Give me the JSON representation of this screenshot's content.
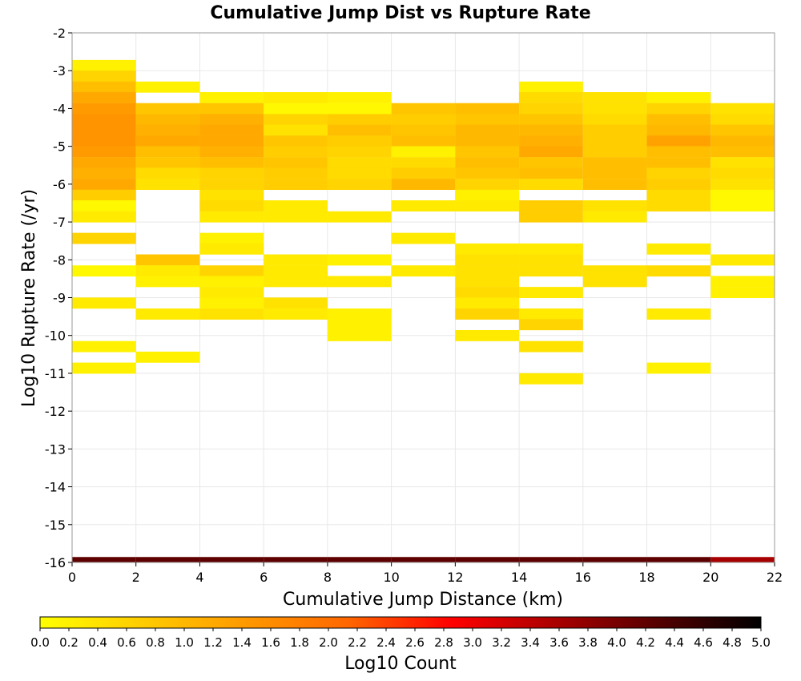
{
  "chart_data": {
    "type": "heatmap",
    "title": "Cumulative Jump Dist vs Rupture Rate",
    "xlabel": "Cumulative Jump Distance (km)",
    "ylabel": "Log10 Rupture Rate (/yr)",
    "colorbar_label": "Log10 Count",
    "xlim": [
      0,
      22
    ],
    "ylim": [
      -16,
      -2
    ],
    "x_ticks": [
      "0",
      "2",
      "4",
      "6",
      "8",
      "10",
      "12",
      "14",
      "16",
      "18",
      "20",
      "22"
    ],
    "y_ticks": [
      "-2",
      "-3",
      "-4",
      "-5",
      "-6",
      "-7",
      "-8",
      "-9",
      "-10",
      "-11",
      "-12",
      "-13",
      "-14",
      "-15",
      "-16"
    ],
    "colorbar_ticks": [
      "0.0",
      "0.2",
      "0.4",
      "0.6",
      "0.8",
      "1.0",
      "1.2",
      "1.4",
      "1.6",
      "1.8",
      "2.0",
      "2.2",
      "2.4",
      "2.6",
      "2.8",
      "3.0",
      "3.2",
      "3.4",
      "3.6",
      "3.8",
      "4.0",
      "4.2",
      "4.4",
      "4.6",
      "4.8",
      "5.0"
    ],
    "color_range": [
      0,
      5
    ],
    "colormap": [
      "#ffff00",
      "#ffcc00",
      "#ff9900",
      "#ff6600",
      "#ff0000",
      "#aa0000",
      "#550000",
      "#000000"
    ],
    "grid": true,
    "bin_x_width": 2,
    "bin_y_height": 0.2857,
    "cells": [
      {
        "x": 1,
        "y": -2.86,
        "value": 0.2
      },
      {
        "x": 1,
        "y": -3.14,
        "value": 0.6
      },
      {
        "x": 1,
        "y": -3.43,
        "value": 0.9
      },
      {
        "x": 1,
        "y": -3.71,
        "value": 1.2
      },
      {
        "x": 1,
        "y": -4.0,
        "value": 1.4
      },
      {
        "x": 1,
        "y": -4.29,
        "value": 1.5
      },
      {
        "x": 1,
        "y": -4.57,
        "value": 1.5
      },
      {
        "x": 1,
        "y": -4.86,
        "value": 1.5
      },
      {
        "x": 1,
        "y": -5.14,
        "value": 1.4
      },
      {
        "x": 1,
        "y": -5.43,
        "value": 1.2
      },
      {
        "x": 1,
        "y": -5.71,
        "value": 1.1
      },
      {
        "x": 1,
        "y": -6.0,
        "value": 1.2
      },
      {
        "x": 1,
        "y": -6.29,
        "value": 0.7
      },
      {
        "x": 1,
        "y": -6.57,
        "value": 0.1
      },
      {
        "x": 1,
        "y": -6.86,
        "value": 0.3
      },
      {
        "x": 1,
        "y": -7.43,
        "value": 0.6
      },
      {
        "x": 1,
        "y": -8.29,
        "value": 0.1
      },
      {
        "x": 1,
        "y": -9.14,
        "value": 0.3
      },
      {
        "x": 1,
        "y": -10.29,
        "value": 0.2
      },
      {
        "x": 1,
        "y": -10.86,
        "value": 0.2
      },
      {
        "x": 1,
        "y": -16.0,
        "value": 4.2
      },
      {
        "x": 3,
        "y": -3.43,
        "value": 0.2
      },
      {
        "x": 3,
        "y": -4.0,
        "value": 0.8
      },
      {
        "x": 3,
        "y": -4.29,
        "value": 1.0
      },
      {
        "x": 3,
        "y": -4.57,
        "value": 1.1
      },
      {
        "x": 3,
        "y": -4.86,
        "value": 1.2
      },
      {
        "x": 3,
        "y": -5.14,
        "value": 0.9
      },
      {
        "x": 3,
        "y": -5.43,
        "value": 0.8
      },
      {
        "x": 3,
        "y": -5.71,
        "value": 0.5
      },
      {
        "x": 3,
        "y": -6.0,
        "value": 0.4
      },
      {
        "x": 3,
        "y": -8.0,
        "value": 0.8
      },
      {
        "x": 3,
        "y": -8.29,
        "value": 0.3
      },
      {
        "x": 3,
        "y": -8.57,
        "value": 0.2
      },
      {
        "x": 3,
        "y": -9.43,
        "value": 0.3
      },
      {
        "x": 3,
        "y": -10.57,
        "value": 0.2
      },
      {
        "x": 3,
        "y": -16.0,
        "value": 4.2
      },
      {
        "x": 5,
        "y": -3.71,
        "value": 0.2
      },
      {
        "x": 5,
        "y": -4.0,
        "value": 0.8
      },
      {
        "x": 5,
        "y": -4.29,
        "value": 1.1
      },
      {
        "x": 5,
        "y": -4.57,
        "value": 1.2
      },
      {
        "x": 5,
        "y": -4.86,
        "value": 1.2
      },
      {
        "x": 5,
        "y": -5.14,
        "value": 1.1
      },
      {
        "x": 5,
        "y": -5.43,
        "value": 0.9
      },
      {
        "x": 5,
        "y": -5.71,
        "value": 0.6
      },
      {
        "x": 5,
        "y": -6.0,
        "value": 0.6
      },
      {
        "x": 5,
        "y": -6.29,
        "value": 0.4
      },
      {
        "x": 5,
        "y": -6.57,
        "value": 0.5
      },
      {
        "x": 5,
        "y": -6.86,
        "value": 0.3
      },
      {
        "x": 5,
        "y": -7.43,
        "value": 0.2
      },
      {
        "x": 5,
        "y": -7.71,
        "value": 0.3
      },
      {
        "x": 5,
        "y": -8.29,
        "value": 0.6
      },
      {
        "x": 5,
        "y": -8.57,
        "value": 0.2
      },
      {
        "x": 5,
        "y": -8.86,
        "value": 0.3
      },
      {
        "x": 5,
        "y": -9.14,
        "value": 0.2
      },
      {
        "x": 5,
        "y": -9.43,
        "value": 0.4
      },
      {
        "x": 5,
        "y": -16.0,
        "value": 4.2
      },
      {
        "x": 7,
        "y": -3.71,
        "value": 0.3
      },
      {
        "x": 7,
        "y": -4.0,
        "value": 0.1
      },
      {
        "x": 7,
        "y": -4.29,
        "value": 0.6
      },
      {
        "x": 7,
        "y": -4.57,
        "value": 0.4
      },
      {
        "x": 7,
        "y": -4.86,
        "value": 0.8
      },
      {
        "x": 7,
        "y": -5.14,
        "value": 0.7
      },
      {
        "x": 7,
        "y": -5.43,
        "value": 0.8
      },
      {
        "x": 7,
        "y": -5.71,
        "value": 0.7
      },
      {
        "x": 7,
        "y": -6.0,
        "value": 0.7
      },
      {
        "x": 7,
        "y": -6.57,
        "value": 0.3
      },
      {
        "x": 7,
        "y": -6.86,
        "value": 0.3
      },
      {
        "x": 7,
        "y": -8.0,
        "value": 0.3
      },
      {
        "x": 7,
        "y": -8.29,
        "value": 0.3
      },
      {
        "x": 7,
        "y": -8.57,
        "value": 0.3
      },
      {
        "x": 7,
        "y": -9.14,
        "value": 0.4
      },
      {
        "x": 7,
        "y": -9.43,
        "value": 0.3
      },
      {
        "x": 7,
        "y": -16.0,
        "value": 4.2
      },
      {
        "x": 9,
        "y": -3.71,
        "value": 0.2
      },
      {
        "x": 9,
        "y": -4.0,
        "value": 0.1
      },
      {
        "x": 9,
        "y": -4.29,
        "value": 0.7
      },
      {
        "x": 9,
        "y": -4.57,
        "value": 0.9
      },
      {
        "x": 9,
        "y": -4.86,
        "value": 0.7
      },
      {
        "x": 9,
        "y": -5.14,
        "value": 0.6
      },
      {
        "x": 9,
        "y": -5.43,
        "value": 0.5
      },
      {
        "x": 9,
        "y": -5.71,
        "value": 0.5
      },
      {
        "x": 9,
        "y": -6.0,
        "value": 0.6
      },
      {
        "x": 9,
        "y": -6.86,
        "value": 0.3
      },
      {
        "x": 9,
        "y": -8.0,
        "value": 0.2
      },
      {
        "x": 9,
        "y": -8.57,
        "value": 0.3
      },
      {
        "x": 9,
        "y": -9.43,
        "value": 0.2
      },
      {
        "x": 9,
        "y": -9.71,
        "value": 0.2
      },
      {
        "x": 9,
        "y": -10.0,
        "value": 0.2
      },
      {
        "x": 9,
        "y": -16.0,
        "value": 4.2
      },
      {
        "x": 11,
        "y": -4.0,
        "value": 0.8
      },
      {
        "x": 11,
        "y": -4.29,
        "value": 0.7
      },
      {
        "x": 11,
        "y": -4.57,
        "value": 0.8
      },
      {
        "x": 11,
        "y": -4.86,
        "value": 0.9
      },
      {
        "x": 11,
        "y": -5.14,
        "value": 0.2
      },
      {
        "x": 11,
        "y": -5.43,
        "value": 0.5
      },
      {
        "x": 11,
        "y": -5.71,
        "value": 0.7
      },
      {
        "x": 11,
        "y": -6.0,
        "value": 1.0
      },
      {
        "x": 11,
        "y": -6.57,
        "value": 0.3
      },
      {
        "x": 11,
        "y": -7.43,
        "value": 0.3
      },
      {
        "x": 11,
        "y": -8.29,
        "value": 0.3
      },
      {
        "x": 11,
        "y": -16.0,
        "value": 4.2
      },
      {
        "x": 13,
        "y": -4.0,
        "value": 0.9
      },
      {
        "x": 13,
        "y": -4.29,
        "value": 0.8
      },
      {
        "x": 13,
        "y": -4.57,
        "value": 1.0
      },
      {
        "x": 13,
        "y": -4.86,
        "value": 1.0
      },
      {
        "x": 13,
        "y": -5.14,
        "value": 0.8
      },
      {
        "x": 13,
        "y": -5.43,
        "value": 0.9
      },
      {
        "x": 13,
        "y": -5.71,
        "value": 0.8
      },
      {
        "x": 13,
        "y": -6.0,
        "value": 0.6
      },
      {
        "x": 13,
        "y": -6.29,
        "value": 0.2
      },
      {
        "x": 13,
        "y": -6.57,
        "value": 0.3
      },
      {
        "x": 13,
        "y": -7.71,
        "value": 0.3
      },
      {
        "x": 13,
        "y": -8.0,
        "value": 0.4
      },
      {
        "x": 13,
        "y": -8.29,
        "value": 0.4
      },
      {
        "x": 13,
        "y": -8.57,
        "value": 0.4
      },
      {
        "x": 13,
        "y": -8.86,
        "value": 0.5
      },
      {
        "x": 13,
        "y": -9.14,
        "value": 0.3
      },
      {
        "x": 13,
        "y": -9.43,
        "value": 0.6
      },
      {
        "x": 13,
        "y": -10.0,
        "value": 0.3
      },
      {
        "x": 13,
        "y": -16.0,
        "value": 4.2
      },
      {
        "x": 15,
        "y": -3.43,
        "value": 0.2
      },
      {
        "x": 15,
        "y": -3.71,
        "value": 0.5
      },
      {
        "x": 15,
        "y": -4.0,
        "value": 0.6
      },
      {
        "x": 15,
        "y": -4.29,
        "value": 0.8
      },
      {
        "x": 15,
        "y": -4.57,
        "value": 1.0
      },
      {
        "x": 15,
        "y": -4.86,
        "value": 1.1
      },
      {
        "x": 15,
        "y": -5.14,
        "value": 1.2
      },
      {
        "x": 15,
        "y": -5.43,
        "value": 0.8
      },
      {
        "x": 15,
        "y": -5.71,
        "value": 0.9
      },
      {
        "x": 15,
        "y": -6.0,
        "value": 0.5
      },
      {
        "x": 15,
        "y": -6.57,
        "value": 0.7
      },
      {
        "x": 15,
        "y": -6.86,
        "value": 0.7
      },
      {
        "x": 15,
        "y": -7.71,
        "value": 0.3
      },
      {
        "x": 15,
        "y": -8.0,
        "value": 0.4
      },
      {
        "x": 15,
        "y": -8.29,
        "value": 0.4
      },
      {
        "x": 15,
        "y": -8.86,
        "value": 0.3
      },
      {
        "x": 15,
        "y": -9.43,
        "value": 0.3
      },
      {
        "x": 15,
        "y": -9.71,
        "value": 0.6
      },
      {
        "x": 15,
        "y": -10.29,
        "value": 0.4
      },
      {
        "x": 15,
        "y": -11.14,
        "value": 0.3
      },
      {
        "x": 15,
        "y": -16.0,
        "value": 4.2
      },
      {
        "x": 17,
        "y": -3.71,
        "value": 0.4
      },
      {
        "x": 17,
        "y": -4.0,
        "value": 0.4
      },
      {
        "x": 17,
        "y": -4.29,
        "value": 0.5
      },
      {
        "x": 17,
        "y": -4.57,
        "value": 0.7
      },
      {
        "x": 17,
        "y": -4.86,
        "value": 0.7
      },
      {
        "x": 17,
        "y": -5.14,
        "value": 0.7
      },
      {
        "x": 17,
        "y": -5.43,
        "value": 0.9
      },
      {
        "x": 17,
        "y": -5.71,
        "value": 0.9
      },
      {
        "x": 17,
        "y": -6.0,
        "value": 0.9
      },
      {
        "x": 17,
        "y": -6.57,
        "value": 0.4
      },
      {
        "x": 17,
        "y": -6.86,
        "value": 0.3
      },
      {
        "x": 17,
        "y": -8.29,
        "value": 0.4
      },
      {
        "x": 17,
        "y": -8.57,
        "value": 0.4
      },
      {
        "x": 17,
        "y": -16.0,
        "value": 4.2
      },
      {
        "x": 19,
        "y": -3.71,
        "value": 0.2
      },
      {
        "x": 19,
        "y": -4.0,
        "value": 0.6
      },
      {
        "x": 19,
        "y": -4.29,
        "value": 0.9
      },
      {
        "x": 19,
        "y": -4.57,
        "value": 1.0
      },
      {
        "x": 19,
        "y": -4.86,
        "value": 1.3
      },
      {
        "x": 19,
        "y": -5.14,
        "value": 0.9
      },
      {
        "x": 19,
        "y": -5.43,
        "value": 0.9
      },
      {
        "x": 19,
        "y": -5.71,
        "value": 0.6
      },
      {
        "x": 19,
        "y": -6.0,
        "value": 0.7
      },
      {
        "x": 19,
        "y": -6.29,
        "value": 0.5
      },
      {
        "x": 19,
        "y": -6.57,
        "value": 0.5
      },
      {
        "x": 19,
        "y": -7.71,
        "value": 0.3
      },
      {
        "x": 19,
        "y": -8.29,
        "value": 0.5
      },
      {
        "x": 19,
        "y": -9.43,
        "value": 0.3
      },
      {
        "x": 19,
        "y": -10.86,
        "value": 0.2
      },
      {
        "x": 19,
        "y": -16.0,
        "value": 4.2
      },
      {
        "x": 21,
        "y": -4.0,
        "value": 0.4
      },
      {
        "x": 21,
        "y": -4.29,
        "value": 0.5
      },
      {
        "x": 21,
        "y": -4.57,
        "value": 0.8
      },
      {
        "x": 21,
        "y": -4.86,
        "value": 1.0
      },
      {
        "x": 21,
        "y": -5.14,
        "value": 0.9
      },
      {
        "x": 21,
        "y": -5.43,
        "value": 0.4
      },
      {
        "x": 21,
        "y": -5.71,
        "value": 0.5
      },
      {
        "x": 21,
        "y": -6.0,
        "value": 0.4
      },
      {
        "x": 21,
        "y": -6.29,
        "value": 0.1
      },
      {
        "x": 21,
        "y": -6.57,
        "value": 0.1
      },
      {
        "x": 21,
        "y": -8.0,
        "value": 0.3
      },
      {
        "x": 21,
        "y": -8.57,
        "value": 0.2
      },
      {
        "x": 21,
        "y": -8.86,
        "value": 0.2
      },
      {
        "x": 21,
        "y": -16.0,
        "value": 3.6
      }
    ]
  }
}
